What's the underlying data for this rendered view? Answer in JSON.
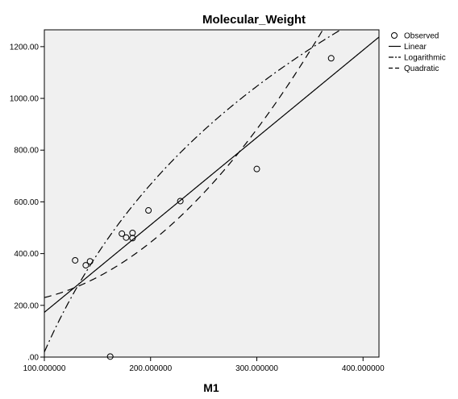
{
  "chart_data": {
    "type": "scatter",
    "title": "Molecular_Weight",
    "xlabel": "M1",
    "ylabel": "",
    "xlim": [
      100,
      415
    ],
    "ylim": [
      0,
      1265
    ],
    "x_ticks": [
      100,
      200,
      300,
      400
    ],
    "x_tick_labels": [
      "100.000000",
      "200.000000",
      "300.000000",
      "400.000000"
    ],
    "y_ticks": [
      0,
      200,
      400,
      600,
      800,
      1000,
      1200
    ],
    "y_tick_labels": [
      ".00",
      "200.00",
      "400.00",
      "600.00",
      "800.00",
      "1000.00",
      "1200.00"
    ],
    "plot_background": "#f0f0f0",
    "grid": false,
    "legend_position": "top-right",
    "series": [
      {
        "name": "Observed",
        "kind": "points",
        "points": [
          [
            129,
            374
          ],
          [
            139,
            355
          ],
          [
            143,
            370
          ],
          [
            162,
            2
          ],
          [
            173,
            477
          ],
          [
            177,
            462
          ],
          [
            183,
            480
          ],
          [
            183,
            460
          ],
          [
            198,
            567
          ],
          [
            228,
            603
          ],
          [
            300,
            727
          ],
          [
            370,
            1155
          ]
        ]
      },
      {
        "name": "Linear",
        "kind": "line",
        "dash": "solid",
        "intercept": -164.8,
        "slope": 3.378
      },
      {
        "name": "Logarithmic",
        "kind": "line",
        "dash": "dash-dot",
        "a": -4286.4,
        "b": 935.0
      },
      {
        "name": "Quadratic",
        "kind": "line",
        "dash": "dash",
        "c0": 239.94,
        "c1": -1.2166,
        "c2": 0.011176
      }
    ]
  }
}
